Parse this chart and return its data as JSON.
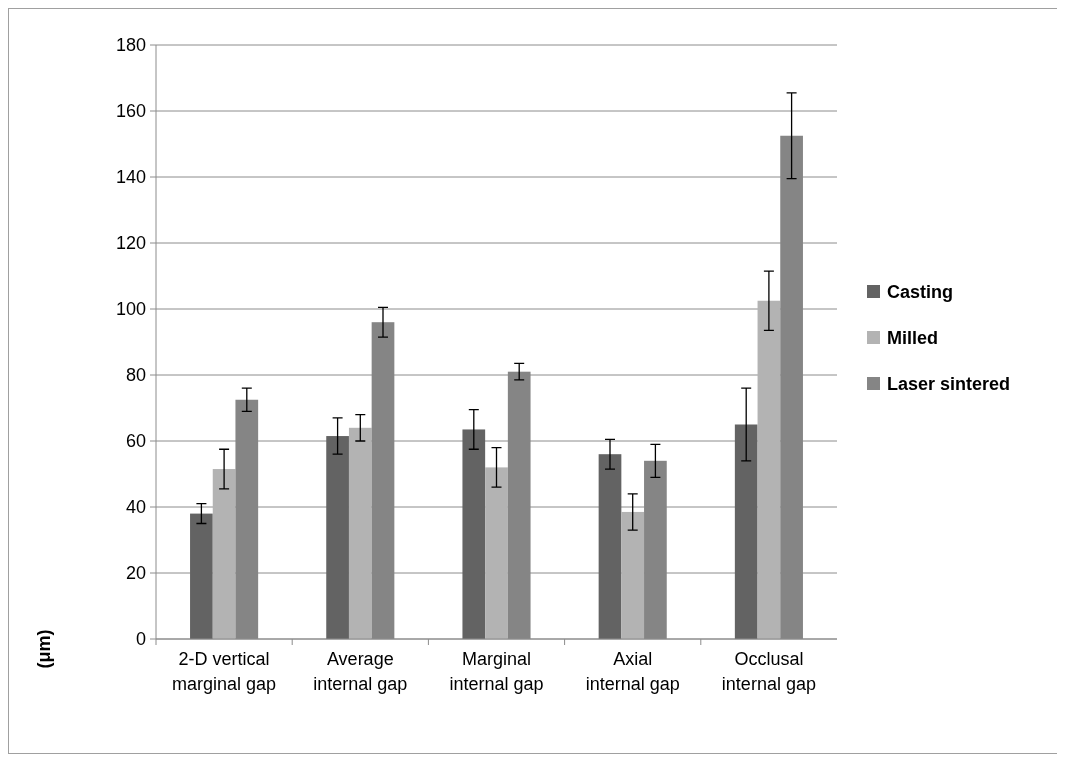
{
  "chart_data": {
    "type": "bar",
    "ylabel": "(μm)",
    "categories": [
      "2-D vertical marginal gap",
      "Average internal gap",
      "Marginal internal gap",
      "Axial internal gap",
      "Occlusal internal gap"
    ],
    "series": [
      {
        "name": "Casting",
        "color": "#636363",
        "values": [
          38,
          61.5,
          63.5,
          56,
          65
        ],
        "errors": [
          3,
          5.5,
          6,
          4.5,
          11
        ]
      },
      {
        "name": "Milled",
        "color": "#b3b3b3",
        "values": [
          51.5,
          64,
          52,
          38.5,
          102.5
        ],
        "errors": [
          6,
          4,
          6,
          5.5,
          9
        ]
      },
      {
        "name": "Laser sintered",
        "color": "#858585",
        "values": [
          72.5,
          96,
          81,
          54,
          152.5
        ],
        "errors": [
          3.5,
          4.5,
          2.5,
          5,
          13
        ]
      }
    ],
    "ylim": [
      0,
      180
    ],
    "yticks": [
      0,
      20,
      40,
      60,
      80,
      100,
      120,
      140,
      160,
      180
    ],
    "grid": "y",
    "legend": "right"
  }
}
